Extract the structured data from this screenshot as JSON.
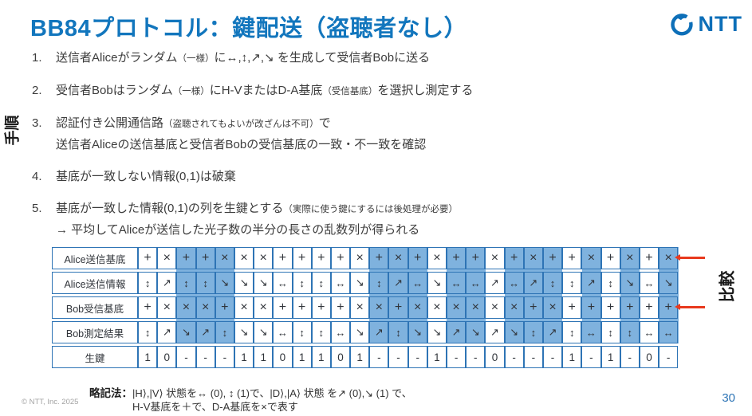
{
  "slide": {
    "title": "BB84プロトコル：鍵配送（盗聴者なし）",
    "page_number": "30",
    "copyright": "© NTT, Inc. 2025"
  },
  "logo": {
    "mark": "ntt-dynamic-loop",
    "text": "NTT"
  },
  "labels": {
    "side": "手順",
    "compare": "比較"
  },
  "steps": [
    {
      "num": "1.",
      "lines": [
        [
          {
            "t": "送信者Aliceがランダム"
          },
          {
            "t": "（一様）",
            "small": true
          },
          {
            "t": "に↔,↕,↗,↘ を生成して受信者Bobに送る"
          }
        ]
      ]
    },
    {
      "num": "2.",
      "lines": [
        [
          {
            "t": "受信者Bobはランダム"
          },
          {
            "t": "（一様）",
            "small": true
          },
          {
            "t": "にH-VまたはD-A基底"
          },
          {
            "t": "（受信基底）",
            "small": true
          },
          {
            "t": "を選択し測定する"
          }
        ]
      ]
    },
    {
      "num": "3.",
      "lines": [
        [
          {
            "t": "認証付き公開通信路"
          },
          {
            "t": "（盗聴されてもよいが改ざんは不可）",
            "small": true
          },
          {
            "t": "で"
          }
        ],
        [
          {
            "t": "送信者Aliceの送信基底と受信者Bobの受信基底の一致・不一致を確認"
          }
        ]
      ]
    },
    {
      "num": "4.",
      "lines": [
        [
          {
            "t": "基底が一致しない情報(0,1)は破棄"
          }
        ]
      ]
    },
    {
      "num": "5.",
      "lines": [
        [
          {
            "t": "基底が一致した情報(0,1)の列を生鍵とする"
          },
          {
            "t": "（実際に使う鍵にするには後処理が必要）",
            "small": true
          }
        ],
        [
          {
            "t": "→ 平均してAliceが送信した光子数の半分の長さの乱数列が得られる"
          }
        ]
      ]
    }
  ],
  "table": {
    "row_labels": [
      "Alice送信基底",
      "Alice送信情報",
      "Bob受信基底",
      "Bob測定結果",
      "生鍵"
    ],
    "rows": [
      [
        "+",
        "×",
        "+",
        "+",
        "×",
        "×",
        "×",
        "+",
        "+",
        "+",
        "+",
        "×",
        "+",
        "×",
        "+",
        "×",
        "+",
        "+",
        "×",
        "+",
        "×",
        "+",
        "+",
        "×",
        "+",
        "×",
        "+",
        "×"
      ],
      [
        "↕",
        "↗",
        "↕",
        "↕",
        "↘",
        "↘",
        "↘",
        "↔",
        "↕",
        "↕",
        "↔",
        "↘",
        "↕",
        "↗",
        "↔",
        "↘",
        "↔",
        "↔",
        "↗",
        "↔",
        "↗",
        "↕",
        "↕",
        "↗",
        "↕",
        "↘",
        "↔",
        "↘"
      ],
      [
        "+",
        "×",
        "×",
        "×",
        "+",
        "×",
        "×",
        "+",
        "+",
        "+",
        "+",
        "×",
        "×",
        "+",
        "×",
        "×",
        "×",
        "×",
        "×",
        "×",
        "+",
        "×",
        "+",
        "+",
        "+",
        "+",
        "+",
        "+"
      ],
      [
        "↕",
        "↗",
        "↘",
        "↗",
        "↕",
        "↘",
        "↘",
        "↔",
        "↕",
        "↕",
        "↔",
        "↘",
        "↗",
        "↕",
        "↘",
        "↘",
        "↗",
        "↘",
        "↗",
        "↘",
        "↕",
        "↗",
        "↕",
        "↔",
        "↕",
        "↕",
        "↔",
        "↔"
      ],
      [
        "1",
        "0",
        "-",
        "-",
        "-",
        "1",
        "1",
        "0",
        "1",
        "1",
        "0",
        "1",
        "-",
        "-",
        "-",
        "1",
        "-",
        "-",
        "0",
        "-",
        "-",
        "-",
        "1",
        "-",
        "1",
        "-",
        "0",
        "-"
      ]
    ],
    "mismatch_columns": [
      3,
      4,
      5,
      13,
      14,
      15,
      17,
      18,
      20,
      21,
      22,
      24,
      26,
      28
    ]
  },
  "legend": {
    "label": "略記法：",
    "line1": "|H⟩,|V⟩ 状態を↔ (0), ↕ (1)で、|D⟩,|A⟩ 状態 を↗ (0),↘ (1) で、",
    "line2": "H-V基底を＋で、D-A基底を×で表す"
  },
  "colors": {
    "title_blue": "#1276BD",
    "logo_blue": "#0D6FB8",
    "table_border": "#2E74B5",
    "highlight_blue": "#7FB2DE",
    "arrow_red": "#E8391D",
    "page_blue": "#2E75B6"
  }
}
